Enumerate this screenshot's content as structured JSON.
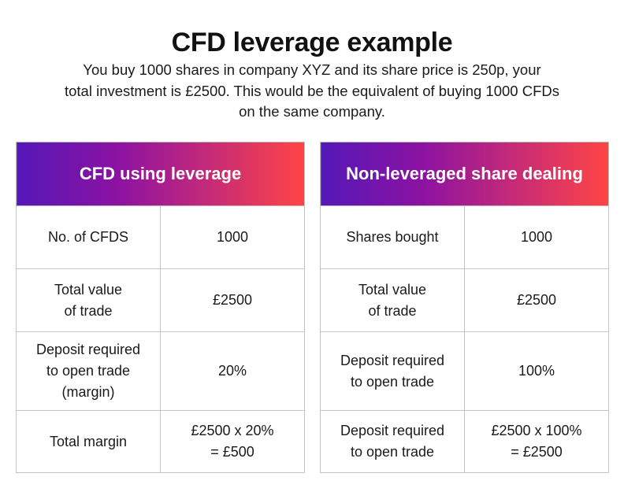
{
  "title": "CFD leverage example",
  "intro": {
    "line1": "You buy 1000 shares in company XYZ and its share price is 250p, your",
    "line2": "total investment is £2500. This would be the equivalent of buying 1000 CFDs",
    "line3": "on the same company."
  },
  "colors": {
    "gradient_start": "#5418b8",
    "gradient_mid": "#8c12a2",
    "gradient_end": "#ff4545",
    "border": "#c4c4c4"
  },
  "tables": {
    "leverage": {
      "header": "CFD using leverage",
      "rows": [
        {
          "label": [
            "No. of CFDS"
          ],
          "value": [
            "1000"
          ]
        },
        {
          "label": [
            "Total value",
            "of trade"
          ],
          "value": [
            "£2500"
          ]
        },
        {
          "label": [
            "Deposit required",
            "to open trade",
            "(margin)"
          ],
          "value": [
            "20%"
          ]
        },
        {
          "label": [
            "Total margin"
          ],
          "value": [
            "£2500 x 20%",
            "= £500"
          ]
        }
      ]
    },
    "non_leveraged": {
      "header": "Non-leveraged share dealing",
      "rows": [
        {
          "label": [
            "Shares bought"
          ],
          "value": [
            "1000"
          ]
        },
        {
          "label": [
            "Total value",
            "of trade"
          ],
          "value": [
            "£2500"
          ]
        },
        {
          "label": [
            "Deposit required",
            "to open trade"
          ],
          "value": [
            "100%"
          ]
        },
        {
          "label": [
            "Deposit required",
            "to open trade"
          ],
          "value": [
            "£2500 x 100%",
            "= £2500"
          ]
        }
      ]
    }
  }
}
